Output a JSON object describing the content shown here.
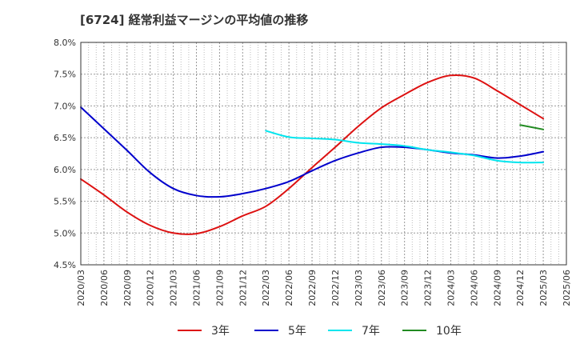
{
  "title": "[6724]  経常利益マージンの平均値の推移",
  "chart_data": {
    "type": "line",
    "title": "[6724]  経常利益マージンの平均値の推移",
    "xlabel": "",
    "ylabel": "",
    "ylim": [
      4.5,
      8.0
    ],
    "y_ticks": [
      "4.5%",
      "5.0%",
      "5.5%",
      "6.0%",
      "6.5%",
      "7.0%",
      "7.5%",
      "8.0%"
    ],
    "y_tick_values": [
      4.5,
      5.0,
      5.5,
      6.0,
      6.5,
      7.0,
      7.5,
      8.0
    ],
    "x_ticks": [
      "2020/03",
      "2020/06",
      "2020/09",
      "2020/12",
      "2021/03",
      "2021/06",
      "2021/09",
      "2021/12",
      "2022/03",
      "2022/06",
      "2022/09",
      "2022/12",
      "2023/03",
      "2023/06",
      "2023/09",
      "2023/12",
      "2024/03",
      "2024/06",
      "2024/09",
      "2024/12",
      "2025/03",
      "2025/06"
    ],
    "grid": true,
    "legend_position": "bottom",
    "series": [
      {
        "name": "3年",
        "color": "#dd1111",
        "x": [
          "2020/03",
          "2020/06",
          "2020/09",
          "2020/12",
          "2021/03",
          "2021/06",
          "2021/09",
          "2021/12",
          "2022/03",
          "2022/06",
          "2022/09",
          "2022/12",
          "2023/03",
          "2023/06",
          "2023/09",
          "2023/12",
          "2024/03",
          "2024/06",
          "2024/09",
          "2024/12",
          "2025/03"
        ],
        "values": [
          5.85,
          5.6,
          5.33,
          5.12,
          5.0,
          4.99,
          5.1,
          5.27,
          5.42,
          5.7,
          6.03,
          6.35,
          6.68,
          6.97,
          7.18,
          7.37,
          7.48,
          7.44,
          7.24,
          7.02,
          6.8
        ]
      },
      {
        "name": "5年",
        "color": "#0000cc",
        "x": [
          "2020/03",
          "2020/06",
          "2020/09",
          "2020/12",
          "2021/03",
          "2021/06",
          "2021/09",
          "2021/12",
          "2022/03",
          "2022/06",
          "2022/09",
          "2022/12",
          "2023/03",
          "2023/06",
          "2023/09",
          "2023/12",
          "2024/03",
          "2024/06",
          "2024/09",
          "2024/12",
          "2025/03"
        ],
        "values": [
          6.98,
          6.64,
          6.3,
          5.95,
          5.7,
          5.59,
          5.57,
          5.62,
          5.7,
          5.81,
          5.98,
          6.14,
          6.26,
          6.35,
          6.35,
          6.31,
          6.26,
          6.23,
          6.18,
          6.21,
          6.28
        ]
      },
      {
        "name": "7年",
        "color": "#00e5ee",
        "x": [
          "2022/03",
          "2022/06",
          "2022/09",
          "2022/12",
          "2023/03",
          "2023/06",
          "2023/09",
          "2023/12",
          "2024/03",
          "2024/06",
          "2024/09",
          "2024/12",
          "2025/03"
        ],
        "values": [
          6.61,
          6.51,
          6.49,
          6.47,
          6.42,
          6.4,
          6.37,
          6.31,
          6.27,
          6.22,
          6.14,
          6.11,
          6.11
        ]
      },
      {
        "name": "10年",
        "color": "#228b22",
        "x": [
          "2024/12",
          "2025/03"
        ],
        "values": [
          6.7,
          6.63
        ]
      }
    ]
  }
}
